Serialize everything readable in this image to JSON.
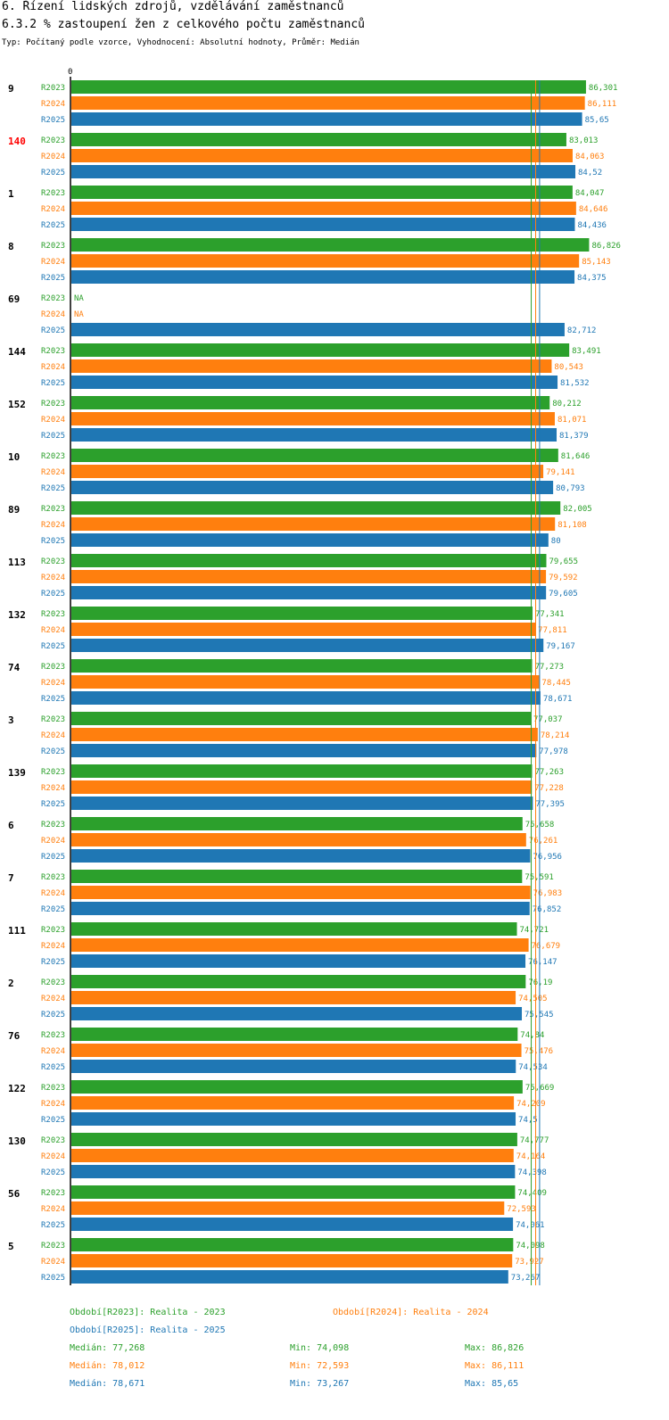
{
  "title": "6. Řízení lidských zdrojů, vzdělávání zaměstnanců",
  "subtitle": "6.3.2 % zastoupení žen z celkového počtu zaměstnanců",
  "type_line": "Typ: Počítaný podle vzorce, Vyhodnocení: Absolutní hodnoty, Průměr: Medián",
  "colors": {
    "R2023": "#2ca02c",
    "R2024": "#ff7f0e",
    "R2025": "#1f77b4",
    "highlight": "#ff0000",
    "axis": "#000000"
  },
  "chart_data": {
    "type": "bar",
    "orientation": "horizontal",
    "axis_zero_label": "0",
    "xlim": [
      0,
      90.5
    ],
    "na_label": "NA",
    "categories": [
      "9",
      "140",
      "1",
      "8",
      "69",
      "144",
      "152",
      "10",
      "89",
      "113",
      "132",
      "74",
      "3",
      "139",
      "6",
      "7",
      "111",
      "2",
      "76",
      "122",
      "130",
      "56",
      "5"
    ],
    "highlighted_category": "140",
    "series": [
      {
        "name": "R2023",
        "labels": [
          "86,301",
          "83,013",
          "84,047",
          "86,826",
          "NA",
          "83,491",
          "80,212",
          "81,646",
          "82,005",
          "79,655",
          "77,341",
          "77,273",
          "77,037",
          "77,263",
          "75,658",
          "75,591",
          "74,721",
          "76,19",
          "74,84",
          "75,669",
          "74,777",
          "74,409",
          "74,098"
        ],
        "values": [
          86.301,
          83.013,
          84.047,
          86.826,
          null,
          83.491,
          80.212,
          81.646,
          82.005,
          79.655,
          77.341,
          77.273,
          77.037,
          77.263,
          75.658,
          75.591,
          74.721,
          76.19,
          74.84,
          75.669,
          74.777,
          74.409,
          74.098
        ]
      },
      {
        "name": "R2024",
        "labels": [
          "86,111",
          "84,063",
          "84,646",
          "85,143",
          "NA",
          "80,543",
          "81,071",
          "79,141",
          "81,108",
          "79,592",
          "77,811",
          "78,445",
          "78,214",
          "77,228",
          "76,261",
          "76,983",
          "76,679",
          "74,505",
          "75,476",
          "74,209",
          "74,164",
          "72,593",
          "73,927"
        ],
        "values": [
          86.111,
          84.063,
          84.646,
          85.143,
          null,
          80.543,
          81.071,
          79.141,
          81.108,
          79.592,
          77.811,
          78.445,
          78.214,
          77.228,
          76.261,
          76.983,
          76.679,
          74.505,
          75.476,
          74.209,
          74.164,
          72.593,
          73.927
        ]
      },
      {
        "name": "R2025",
        "labels": [
          "85,65",
          "84,52",
          "84,436",
          "84,375",
          "82,712",
          "81,532",
          "81,379",
          "80,793",
          "80",
          "79,605",
          "79,167",
          "78,671",
          "77,978",
          "77,395",
          "76,956",
          "76,852",
          "76,147",
          "75,545",
          "74,534",
          "74,5",
          "74,398",
          "74,061",
          "73,267"
        ],
        "values": [
          85.65,
          84.52,
          84.436,
          84.375,
          82.712,
          81.532,
          81.379,
          80.793,
          80,
          79.605,
          79.167,
          78.671,
          77.978,
          77.395,
          76.956,
          76.852,
          76.147,
          75.545,
          74.534,
          74.5,
          74.398,
          74.061,
          73.267
        ]
      }
    ],
    "median_lines": [
      77.268,
      78.012,
      78.671
    ]
  },
  "legend": {
    "period_2023": "Období[R2023]: Realita - 2023",
    "period_2024": "Období[R2024]: Realita - 2024",
    "period_2025": "Období[R2025]: Realita - 2025",
    "stats": [
      {
        "median": "Medián: 77,268",
        "min": "Min: 74,098",
        "max": "Max: 86,826"
      },
      {
        "median": "Medián: 78,012",
        "min": "Min: 72,593",
        "max": "Max: 86,111"
      },
      {
        "median": "Medián: 78,671",
        "min": "Min: 73,267",
        "max": "Max: 85,65"
      }
    ]
  }
}
